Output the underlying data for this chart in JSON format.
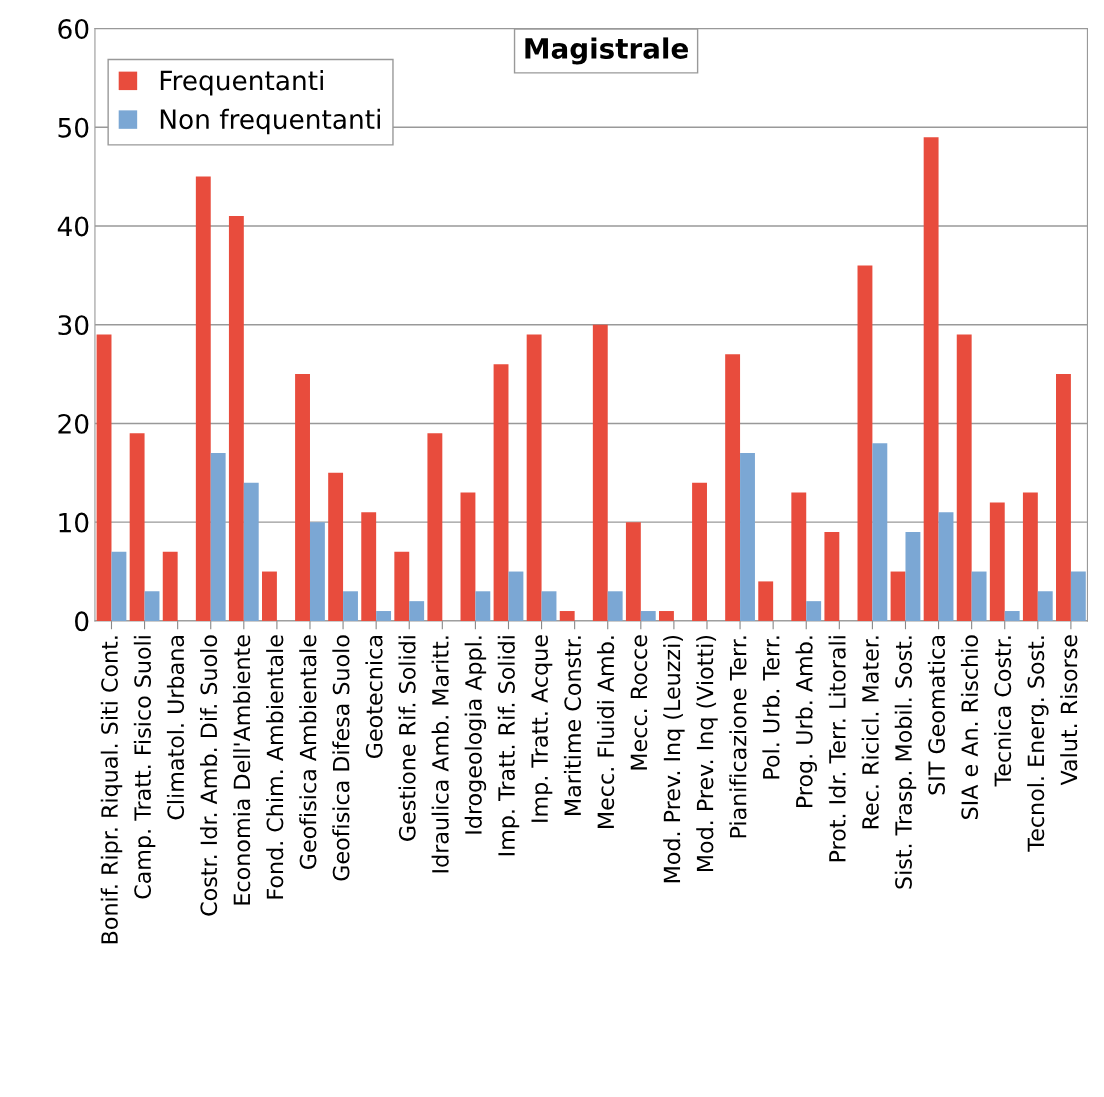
{
  "chart_data": {
    "type": "bar",
    "title": "Magistrale",
    "categories": [
      "Bonif. Ripr. Riqual. Siti Cont.",
      "Camp. Tratt. Fisico Suoli",
      "Climatol. Urbana",
      "Costr. Idr. Amb. Dif. Suolo",
      "Economia Dell'Ambiente",
      "Fond. Chim. Ambientale",
      "Geofisica Ambientale",
      "Geofisica Difesa Suolo",
      "Geotecnica",
      "Gestione Rif. Solidi",
      "Idraulica Amb. Maritt.",
      "Idrogeologia Appl.",
      "Imp. Tratt. Rif. Solidi",
      "Imp. Tratt. Acque",
      "Maritime Constr.",
      "Mecc. Fluidi Amb.",
      "Mecc. Rocce",
      "Mod. Prev. Inq (Leuzzi)",
      "Mod. Prev. Inq (Viotti)",
      "Pianificazione Terr.",
      "Pol. Urb. Terr.",
      "Prog. Urb. Amb.",
      "Prot. Idr. Terr. Litorali",
      "Rec. Ricicl. Mater.",
      "Sist. Trasp. Mobil. Sost.",
      "SIT Geomatica",
      "SIA e An. Rischio",
      "Tecnica Costr.",
      "Tecnol. Energ. Sost.",
      "Valut. Risorse"
    ],
    "series": [
      {
        "name": "Frequentanti",
        "color": "#e84c3d",
        "values": [
          29,
          19,
          7,
          45,
          41,
          5,
          25,
          15,
          11,
          7,
          19,
          13,
          26,
          29,
          1,
          30,
          10,
          1,
          14,
          27,
          4,
          13,
          9,
          36,
          5,
          49,
          29,
          12,
          13,
          25
        ]
      },
      {
        "name": "Non frequentanti",
        "color": "#7ba7d4",
        "values": [
          7,
          3,
          0,
          17,
          14,
          0,
          10,
          3,
          1,
          2,
          0,
          3,
          5,
          3,
          0,
          3,
          1,
          0,
          0,
          17,
          0,
          2,
          0,
          18,
          9,
          11,
          5,
          1,
          3,
          5
        ]
      }
    ],
    "ylim": [
      0,
      60
    ],
    "yticks": [
      0,
      10,
      20,
      30,
      40,
      50,
      60
    ],
    "grid": "y",
    "legend": "top left"
  }
}
